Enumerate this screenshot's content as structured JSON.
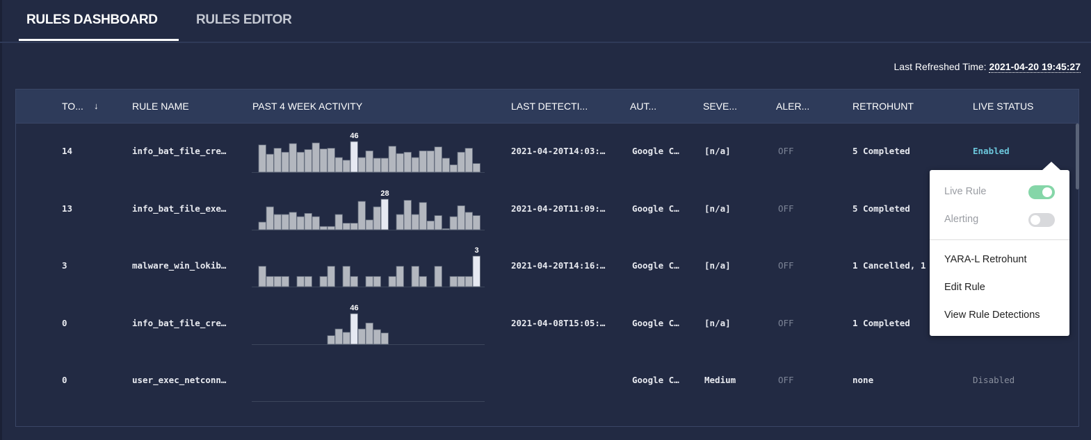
{
  "tabs": [
    {
      "label": "RULES DASHBOARD",
      "active": true
    },
    {
      "label": "RULES EDITOR",
      "active": false
    }
  ],
  "refreshed": {
    "label": "Last Refreshed Time:",
    "value": "2021-04-20 19:45:27"
  },
  "columns": [
    "TO...",
    "RULE NAME",
    "PAST 4 WEEK ACTIVITY",
    "LAST DETECTI...",
    "AUT...",
    "SEVE...",
    "ALER...",
    "RETROHUNT",
    "LIVE STATUS"
  ],
  "sort_icon": "arrow-down-icon",
  "rows": [
    {
      "total": "14",
      "name": "info_bat_file_cre…",
      "last": "2021-04-20T14:03:…",
      "author": "Google C…",
      "severity": "[n/a]",
      "alerting": "OFF",
      "retrohunt": "5 Completed",
      "status": "Enabled",
      "peak_label": "46",
      "activity": [
        41,
        27,
        36,
        30,
        43,
        30,
        34,
        44,
        35,
        36,
        22,
        18,
        46,
        22,
        32,
        21,
        21,
        39,
        28,
        30,
        22,
        32,
        32,
        38,
        21,
        11,
        30,
        36,
        13
      ]
    },
    {
      "total": "13",
      "name": "info_bat_file_exe…",
      "last": "2021-04-20T11:09:…",
      "author": "Google C…",
      "severity": "[n/a]",
      "alerting": "OFF",
      "retrohunt": "5 Completed",
      "status": "",
      "peak_label": "28",
      "activity": [
        7,
        21,
        14,
        14,
        16,
        12,
        15,
        12,
        3,
        3,
        14,
        6,
        6,
        26,
        9,
        21,
        28,
        0,
        14,
        27,
        14,
        25,
        8,
        13,
        1,
        12,
        22,
        16,
        13
      ]
    },
    {
      "total": "3",
      "name": "malware_win_lokib…",
      "last": "2021-04-20T14:16:…",
      "author": "Google C…",
      "severity": "[n/a]",
      "alerting": "OFF",
      "retrohunt": "1 Cancelled, 1",
      "status": "",
      "peak_label": "3",
      "activity": [
        2,
        1,
        1,
        1,
        0,
        1,
        1,
        0,
        1,
        2,
        0,
        2,
        1,
        0,
        1,
        1,
        0,
        1,
        2,
        0,
        2,
        1,
        0,
        2,
        0,
        1,
        1,
        1,
        3
      ]
    },
    {
      "total": "0",
      "name": "info_bat_file_cre…",
      "last": "2021-04-08T15:05:…",
      "author": "Google C…",
      "severity": "[n/a]",
      "alerting": "OFF",
      "retrohunt": "1 Completed",
      "status": "",
      "peak_label": "46",
      "activity": [
        0,
        0,
        0,
        0,
        0,
        0,
        0,
        0,
        0,
        13,
        23,
        18,
        46,
        23,
        32,
        22,
        17,
        0,
        0,
        0,
        0,
        0,
        0,
        0,
        0,
        0,
        0,
        0,
        0
      ]
    },
    {
      "total": "0",
      "name": "user_exec_netconn…",
      "last": "",
      "author": "Google C…",
      "severity": "Medium",
      "alerting": "OFF",
      "retrohunt": "none",
      "status": "Disabled",
      "peak_label": "",
      "activity": []
    }
  ],
  "popover": {
    "live_rule": {
      "label": "Live Rule",
      "on": true
    },
    "alerting": {
      "label": "Alerting",
      "on": false
    },
    "items": [
      "YARA-L Retrohunt",
      "Edit Rule",
      "View Rule Detections"
    ]
  },
  "colors": {
    "background": "#222a43",
    "header": "#2e3b5a",
    "bar": "#b3b7bf",
    "bar_peak": "#e6e9f2",
    "enabled": "#6cc7dc",
    "toggle_on": "#85d6a8"
  }
}
